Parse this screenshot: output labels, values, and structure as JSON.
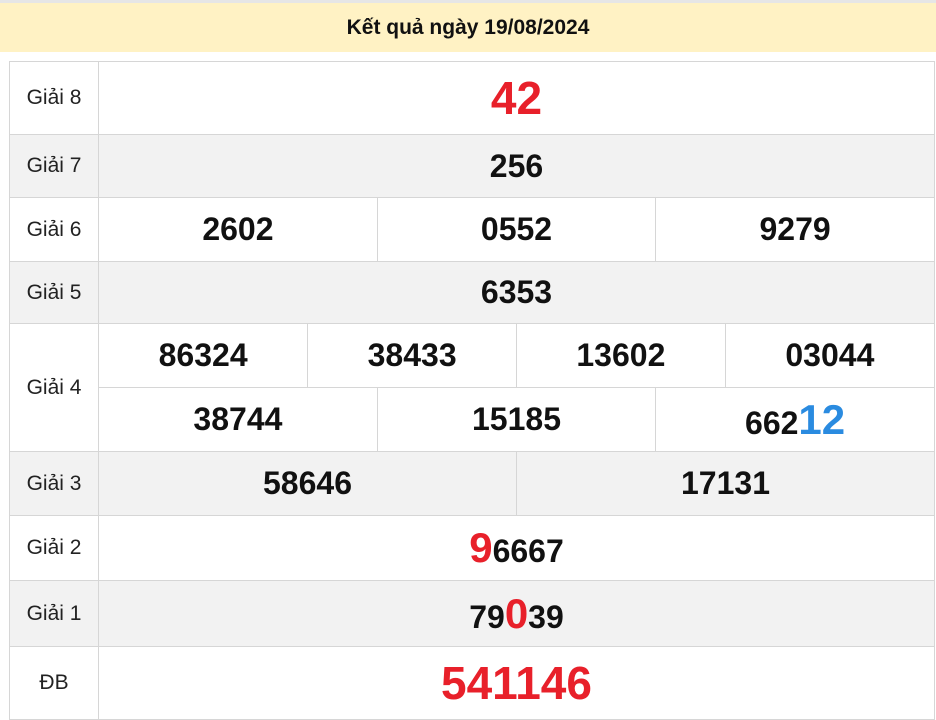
{
  "header": {
    "title": "Kết quả ngày 19/08/2024"
  },
  "colors": {
    "header_bg": "#fff2c4",
    "red": "#e8202a",
    "blue": "#2a8be0",
    "alt_row": "#f2f2f2"
  },
  "prizes": {
    "g8": {
      "label": "Giải 8",
      "numbers": [
        "42"
      ]
    },
    "g7": {
      "label": "Giải 7",
      "numbers": [
        "256"
      ]
    },
    "g6": {
      "label": "Giải 6",
      "numbers": [
        "2602",
        "0552",
        "9279"
      ]
    },
    "g5": {
      "label": "Giải 5",
      "numbers": [
        "6353"
      ]
    },
    "g4": {
      "label": "Giải 4",
      "row1": [
        "86324",
        "38433",
        "13602",
        "03044"
      ],
      "row2": [
        "38744",
        "15185"
      ],
      "last": {
        "plain": "662",
        "highlight": "12"
      }
    },
    "g3": {
      "label": "Giải 3",
      "numbers": [
        "58646",
        "17131"
      ]
    },
    "g2": {
      "label": "Giải 2",
      "highlight": "9",
      "rest": "6667"
    },
    "g1": {
      "label": "Giải 1",
      "pre": "79",
      "highlight": "0",
      "post": "39"
    },
    "db": {
      "label": "ĐB",
      "numbers": [
        "541146"
      ]
    }
  }
}
